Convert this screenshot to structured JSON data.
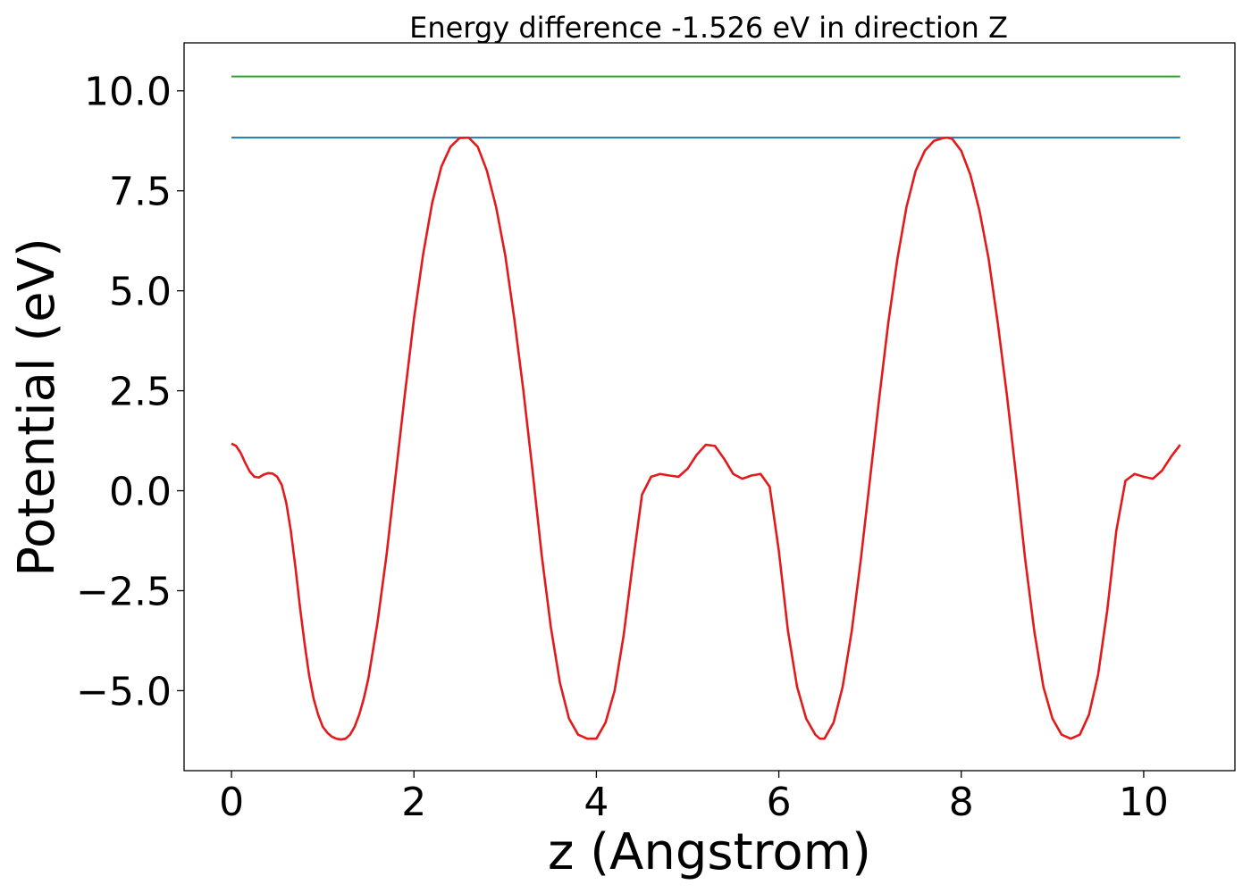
{
  "chart_data": {
    "type": "line",
    "title": "Energy difference -1.526 eV in direction Z",
    "xlabel": "z (Angstrom)",
    "ylabel": "Potential (eV)",
    "xlim": [
      -0.52,
      11.0
    ],
    "ylim": [
      -7.0,
      11.2
    ],
    "x_ticks": [
      0,
      2,
      4,
      6,
      8,
      10
    ],
    "x_tick_labels": [
      "0",
      "2",
      "4",
      "6",
      "8",
      "10"
    ],
    "y_ticks": [
      -5.0,
      -2.5,
      0.0,
      2.5,
      5.0,
      7.5,
      10.0
    ],
    "y_tick_labels": [
      "−5.0",
      "−2.5",
      "0.0",
      "2.5",
      "5.0",
      "7.5",
      "10.0"
    ],
    "grid": false,
    "series": [
      {
        "color": "#1f77b4",
        "x": [
          0,
          10.4
        ],
        "y": [
          8.83,
          8.83
        ]
      },
      {
        "color": "#2ca02c",
        "x": [
          0,
          10.4
        ],
        "y": [
          10.36,
          10.36
        ]
      },
      {
        "color": "#e31a1c",
        "x": [
          0,
          0.05,
          0.1,
          0.15,
          0.2,
          0.25,
          0.3,
          0.35,
          0.4,
          0.45,
          0.5,
          0.55,
          0.6,
          0.65,
          0.7,
          0.75,
          0.8,
          0.85,
          0.9,
          0.95,
          1.0,
          1.05,
          1.1,
          1.15,
          1.2,
          1.25,
          1.3,
          1.35,
          1.4,
          1.45,
          1.5,
          1.6,
          1.7,
          1.8,
          1.9,
          2.0,
          2.1,
          2.2,
          2.3,
          2.4,
          2.5,
          2.6,
          2.7,
          2.8,
          2.9,
          3.0,
          3.1,
          3.2,
          3.3,
          3.4,
          3.5,
          3.6,
          3.7,
          3.8,
          3.9,
          4.0,
          4.1,
          4.2,
          4.3,
          4.4,
          4.5,
          4.6,
          4.7,
          4.8,
          4.9,
          5.0,
          5.1,
          5.2,
          5.3,
          5.4,
          5.5,
          5.6,
          5.7,
          5.8,
          5.9,
          6.0,
          6.1,
          6.2,
          6.3,
          6.4,
          6.45,
          6.5,
          6.6,
          6.7,
          6.8,
          6.9,
          7.0,
          7.1,
          7.2,
          7.3,
          7.4,
          7.5,
          7.6,
          7.7,
          7.8,
          7.85,
          7.9,
          8.0,
          8.1,
          8.2,
          8.3,
          8.4,
          8.5,
          8.6,
          8.7,
          8.8,
          8.9,
          9.0,
          9.1,
          9.2,
          9.3,
          9.4,
          9.5,
          9.6,
          9.7,
          9.8,
          9.9,
          10.0,
          10.1,
          10.2,
          10.3,
          10.4
        ],
        "y": [
          1.18,
          1.12,
          0.95,
          0.7,
          0.48,
          0.35,
          0.33,
          0.4,
          0.44,
          0.43,
          0.35,
          0.15,
          -0.3,
          -1.0,
          -1.9,
          -2.9,
          -3.8,
          -4.6,
          -5.2,
          -5.6,
          -5.9,
          -6.05,
          -6.15,
          -6.2,
          -6.22,
          -6.2,
          -6.1,
          -5.9,
          -5.6,
          -5.2,
          -4.7,
          -3.3,
          -1.6,
          0.4,
          2.4,
          4.3,
          5.9,
          7.2,
          8.1,
          8.6,
          8.82,
          8.83,
          8.6,
          8.0,
          7.1,
          5.9,
          4.3,
          2.5,
          0.5,
          -1.6,
          -3.4,
          -4.8,
          -5.7,
          -6.1,
          -6.2,
          -6.2,
          -5.8,
          -5.0,
          -3.6,
          -1.8,
          -0.1,
          0.35,
          0.42,
          0.38,
          0.35,
          0.55,
          0.9,
          1.15,
          1.12,
          0.8,
          0.42,
          0.3,
          0.38,
          0.42,
          0.1,
          -1.5,
          -3.5,
          -4.9,
          -5.7,
          -6.1,
          -6.2,
          -6.2,
          -5.8,
          -4.9,
          -3.5,
          -1.7,
          0.3,
          2.3,
          4.2,
          5.8,
          7.1,
          8.0,
          8.5,
          8.75,
          8.82,
          8.83,
          8.8,
          8.5,
          7.9,
          7.0,
          5.8,
          4.2,
          2.4,
          0.4,
          -1.7,
          -3.5,
          -4.9,
          -5.7,
          -6.1,
          -6.2,
          -6.1,
          -5.6,
          -4.6,
          -3.0,
          -1.0,
          0.25,
          0.42,
          0.35,
          0.3,
          0.5,
          0.85,
          1.15
        ]
      }
    ]
  }
}
